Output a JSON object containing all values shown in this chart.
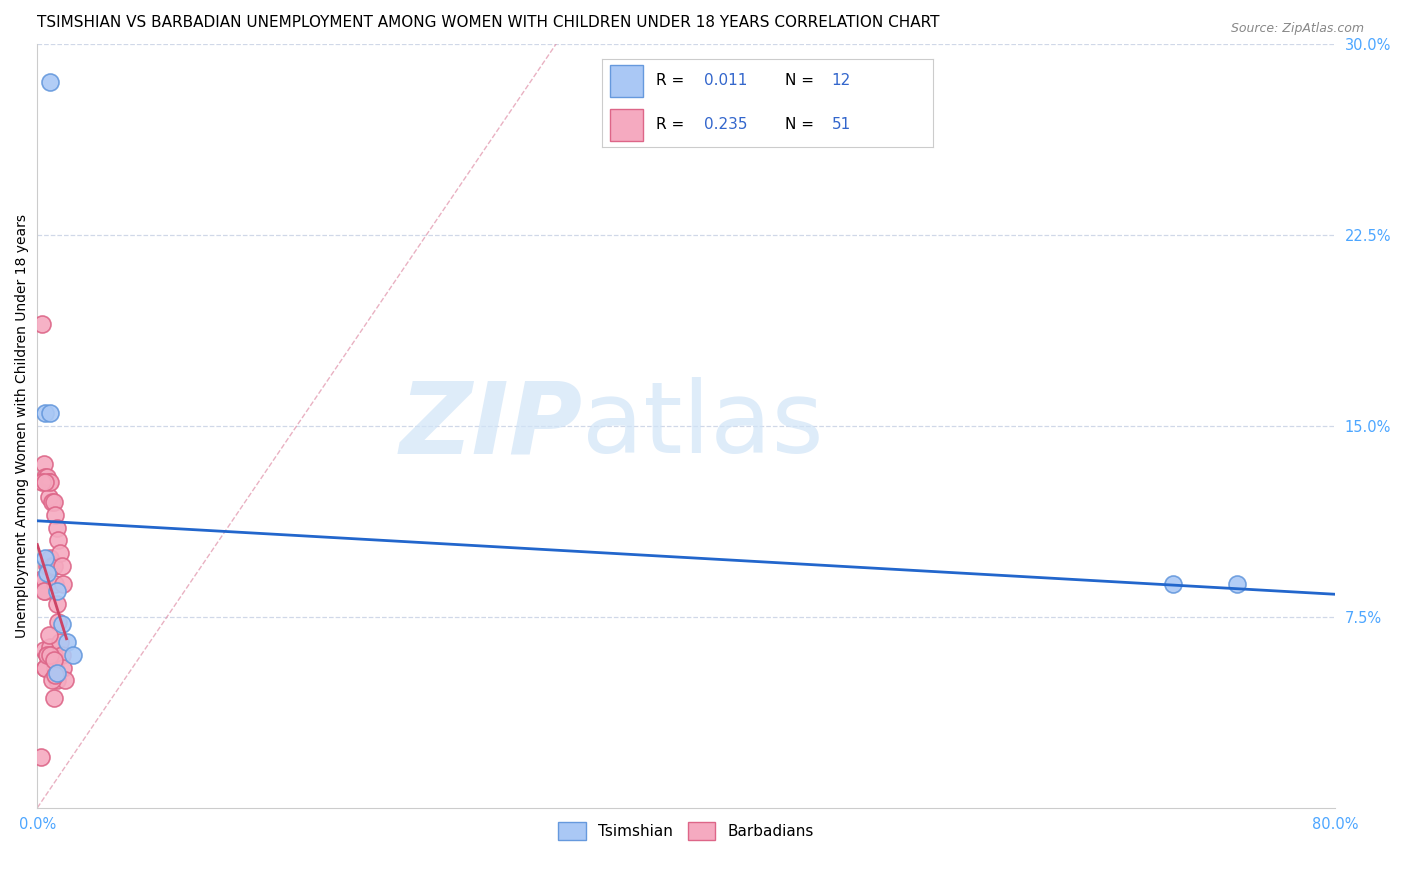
{
  "title": "TSIMSHIAN VS BARBADIAN UNEMPLOYMENT AMONG WOMEN WITH CHILDREN UNDER 18 YEARS CORRELATION CHART",
  "source": "Source: ZipAtlas.com",
  "tick_color": "#4da6ff",
  "ylabel": "Unemployment Among Women with Children Under 18 years",
  "xlim": [
    0.0,
    0.8
  ],
  "ylim": [
    0.0,
    0.3
  ],
  "xticks": [
    0.0,
    0.1,
    0.2,
    0.3,
    0.4,
    0.5,
    0.6,
    0.7,
    0.8
  ],
  "yticks_right": [
    0.075,
    0.15,
    0.225,
    0.3
  ],
  "ytick_labels_right": [
    "7.5%",
    "15.0%",
    "22.5%",
    "30.0%"
  ],
  "tsimshian_color": "#aac8f5",
  "barbadian_color": "#f5aac0",
  "tsimshian_edge": "#6699dd",
  "barbadian_edge": "#dd6688",
  "regression_tsimshian_color": "#2266cc",
  "regression_barbadian_color": "#cc4466",
  "diagonal_color": "#c0c0cc",
  "watermark_zip": "ZIP",
  "watermark_atlas": "atlas",
  "legend_val_color": "#3366cc",
  "tsimshian_x": [
    0.008,
    0.7,
    0.74,
    0.005,
    0.006,
    0.005,
    0.008,
    0.012,
    0.015,
    0.018,
    0.012,
    0.022
  ],
  "tsimshian_y": [
    0.285,
    0.088,
    0.088,
    0.098,
    0.092,
    0.155,
    0.155,
    0.085,
    0.072,
    0.065,
    0.053,
    0.06
  ],
  "barbadian_x": [
    0.002,
    0.003,
    0.003,
    0.004,
    0.004,
    0.004,
    0.005,
    0.005,
    0.005,
    0.006,
    0.006,
    0.006,
    0.007,
    0.007,
    0.007,
    0.007,
    0.008,
    0.008,
    0.008,
    0.009,
    0.009,
    0.009,
    0.01,
    0.01,
    0.01,
    0.01,
    0.011,
    0.011,
    0.011,
    0.012,
    0.012,
    0.012,
    0.013,
    0.013,
    0.014,
    0.014,
    0.015,
    0.015,
    0.016,
    0.016,
    0.017,
    0.003,
    0.004,
    0.005,
    0.005,
    0.006,
    0.007,
    0.008,
    0.009,
    0.01,
    0.011
  ],
  "barbadian_y": [
    0.02,
    0.19,
    0.09,
    0.135,
    0.09,
    0.062,
    0.13,
    0.085,
    0.055,
    0.13,
    0.095,
    0.06,
    0.128,
    0.122,
    0.095,
    0.06,
    0.128,
    0.098,
    0.063,
    0.12,
    0.095,
    0.06,
    0.12,
    0.095,
    0.06,
    0.043,
    0.115,
    0.088,
    0.055,
    0.11,
    0.08,
    0.05,
    0.105,
    0.073,
    0.1,
    0.065,
    0.095,
    0.06,
    0.088,
    0.055,
    0.05,
    0.128,
    0.085,
    0.128,
    0.055,
    0.06,
    0.068,
    0.06,
    0.05,
    0.058,
    0.052
  ],
  "background_color": "#ffffff",
  "grid_color": "#d0d8e8",
  "title_fontsize": 11,
  "axis_label_fontsize": 10,
  "tick_fontsize": 10.5
}
